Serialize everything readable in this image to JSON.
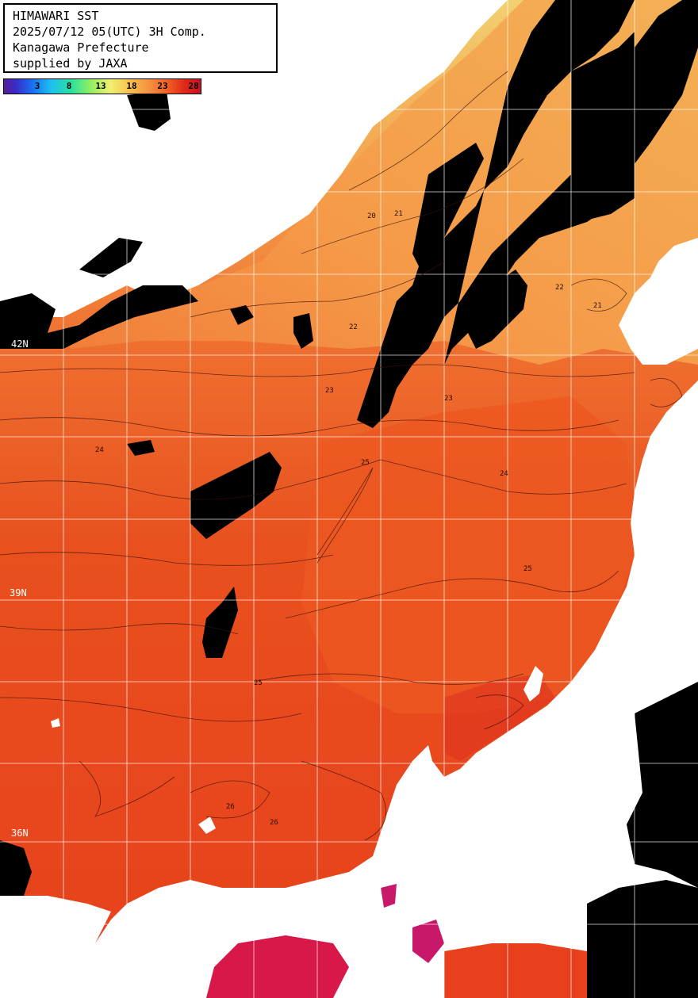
{
  "title_box": {
    "line1": "HIMAWARI SST",
    "line2": "2025/07/12 05(UTC) 3H Comp.",
    "line3": "Kanagawa Prefecture",
    "line4": "supplied by JAXA"
  },
  "colorbar": {
    "ticks": [
      "3",
      "8",
      "13",
      "18",
      "23",
      "28"
    ]
  },
  "latitude_labels": {
    "lat_42": "42N",
    "lat_39": "39N",
    "lat_36": "36N"
  },
  "contour_labels": [
    "20",
    "21",
    "22",
    "23",
    "24",
    "25",
    "26"
  ],
  "colors": {
    "sea_warm": "#e8401c",
    "sea_mid": "#f07030",
    "sea_cool": "#f5a050",
    "sea_cold": "#f0d070",
    "cloud": "#000000",
    "land": "#ffffff",
    "hot_spot": "#d01870",
    "grid": "#ffffff"
  }
}
